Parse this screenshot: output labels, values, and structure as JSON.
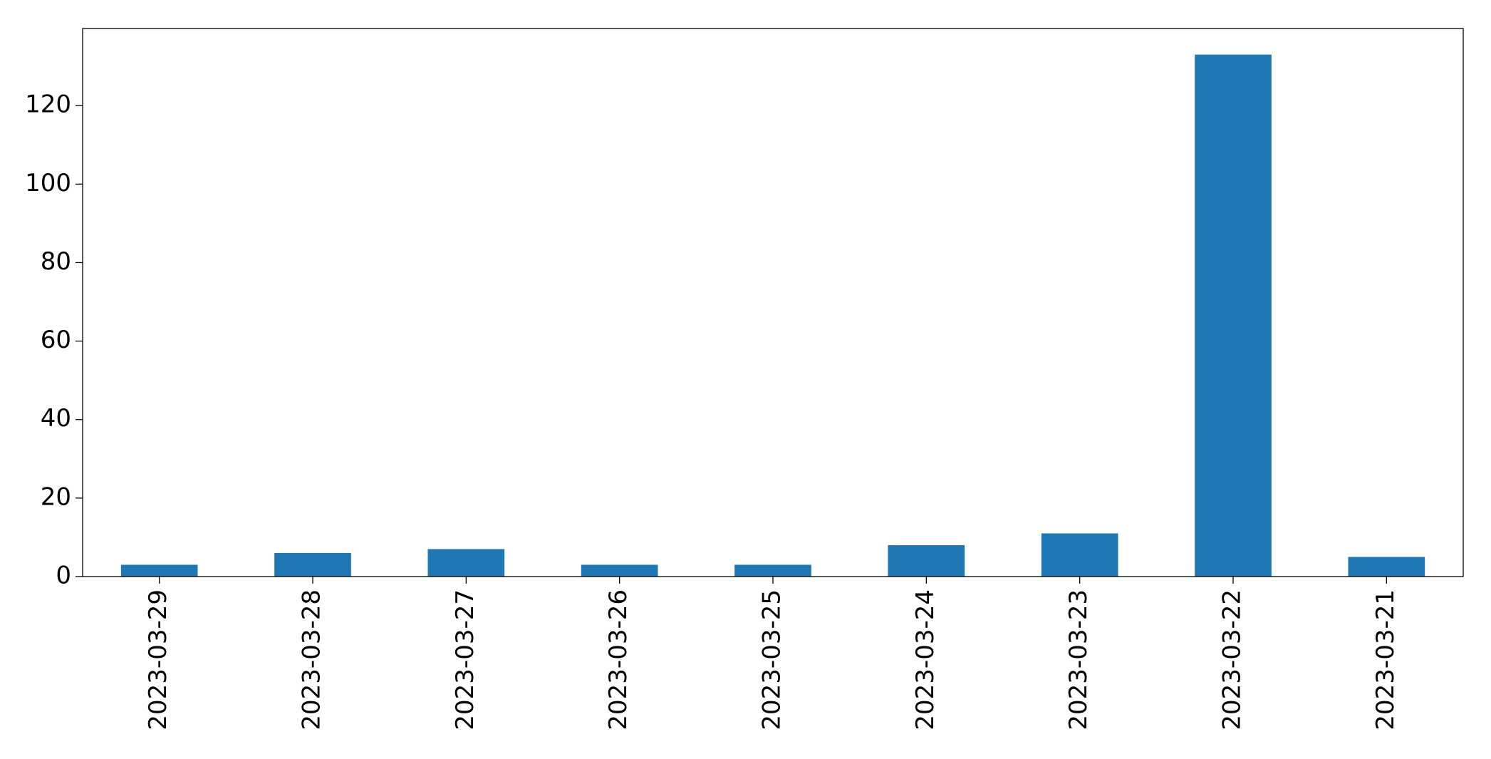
{
  "chart_data": {
    "type": "bar",
    "categories": [
      "2023-03-29",
      "2023-03-28",
      "2023-03-27",
      "2023-03-26",
      "2023-03-25",
      "2023-03-24",
      "2023-03-23",
      "2023-03-22",
      "2023-03-21"
    ],
    "values": [
      3,
      6,
      7,
      3,
      3,
      8,
      11,
      133,
      5
    ],
    "color": "#1f77b4",
    "ylim": [
      0,
      139.65
    ],
    "yticks": [
      0,
      20,
      40,
      60,
      80,
      100,
      120
    ],
    "grid": false
  }
}
